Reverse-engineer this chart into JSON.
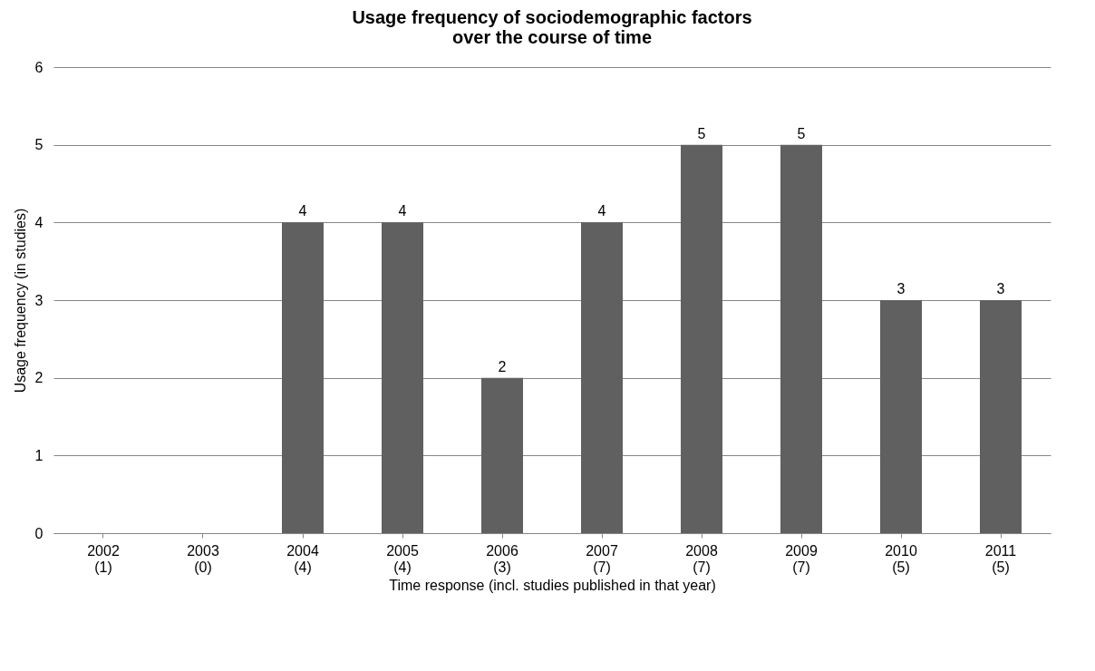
{
  "chart_data": {
    "type": "bar",
    "title": "Usage frequency of sociodemographic factors\nover the course of time",
    "xlabel": "Time response (incl. studies published in that year)",
    "ylabel": "Usage frequency (in studies)",
    "categories": [
      "2002\n(1)",
      "2003\n(0)",
      "2004\n(4)",
      "2005\n(4)",
      "2006\n(3)",
      "2007\n(7)",
      "2008\n(7)",
      "2009\n(7)",
      "2010\n(5)",
      "2011\n(5)"
    ],
    "values": [
      0,
      0,
      4,
      4,
      2,
      4,
      5,
      5,
      3,
      3
    ],
    "value_labels": [
      null,
      null,
      "4",
      "4",
      "2",
      "4",
      "5",
      "5",
      "3",
      "3"
    ],
    "color": "#606060",
    "ylim": [
      0,
      6
    ],
    "yticks": [
      0,
      1,
      2,
      3,
      4,
      5,
      6
    ],
    "grid": "y"
  }
}
